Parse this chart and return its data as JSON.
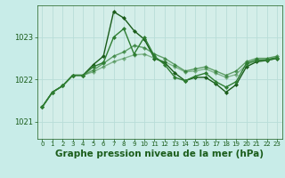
{
  "background_color": "#c8ece8",
  "plot_bg": "#d4eee9",
  "grid_color": "#b8ddd8",
  "line_color_main": "#1a5c1a",
  "xlabel": "Graphe pression niveau de la mer (hPa)",
  "xlabel_fontsize": 7.5,
  "yticks": [
    1021,
    1022,
    1023
  ],
  "ylim": [
    1020.6,
    1023.75
  ],
  "xlim": [
    -0.5,
    23.5
  ],
  "xticks": [
    0,
    1,
    2,
    3,
    4,
    5,
    6,
    7,
    8,
    9,
    10,
    11,
    12,
    13,
    14,
    15,
    16,
    17,
    18,
    19,
    20,
    21,
    22,
    23
  ],
  "series": [
    [
      1021.35,
      1021.7,
      1021.85,
      1022.1,
      1022.1,
      1022.35,
      1022.55,
      1023.6,
      1023.45,
      1023.15,
      1022.95,
      1022.5,
      1022.4,
      1022.15,
      1021.97,
      1022.05,
      1022.05,
      1021.9,
      1021.7,
      1021.88,
      1022.3,
      1022.42,
      1022.45,
      1022.5
    ],
    [
      1021.35,
      1021.7,
      1021.85,
      1022.1,
      1022.1,
      1022.3,
      1022.4,
      1023.0,
      1023.2,
      1022.6,
      1023.0,
      1022.55,
      1022.35,
      1022.05,
      1021.97,
      1022.08,
      1022.15,
      1021.95,
      1021.82,
      1021.95,
      1022.38,
      1022.46,
      1022.47,
      1022.52
    ],
    [
      1021.35,
      1021.7,
      1021.85,
      1022.1,
      1022.1,
      1022.22,
      1022.38,
      1022.55,
      1022.65,
      1022.8,
      1022.75,
      1022.6,
      1022.5,
      1022.35,
      1022.2,
      1022.25,
      1022.3,
      1022.2,
      1022.1,
      1022.2,
      1022.42,
      1022.5,
      1022.5,
      1022.55
    ],
    [
      1021.35,
      1021.7,
      1021.85,
      1022.1,
      1022.1,
      1022.18,
      1022.3,
      1022.42,
      1022.5,
      1022.58,
      1022.6,
      1022.5,
      1022.42,
      1022.3,
      1022.18,
      1022.2,
      1022.25,
      1022.15,
      1022.05,
      1022.12,
      1022.35,
      1022.44,
      1022.45,
      1022.5
    ]
  ],
  "colors": [
    "#1a5c1a",
    "#2e7d32",
    "#2e7d32",
    "#2e7d32"
  ],
  "linewidths": [
    1.0,
    1.0,
    1.0,
    1.0
  ],
  "alphas": [
    1.0,
    1.0,
    0.7,
    0.5
  ],
  "marker_size": [
    2.5,
    2.5,
    2.5,
    2.5
  ]
}
